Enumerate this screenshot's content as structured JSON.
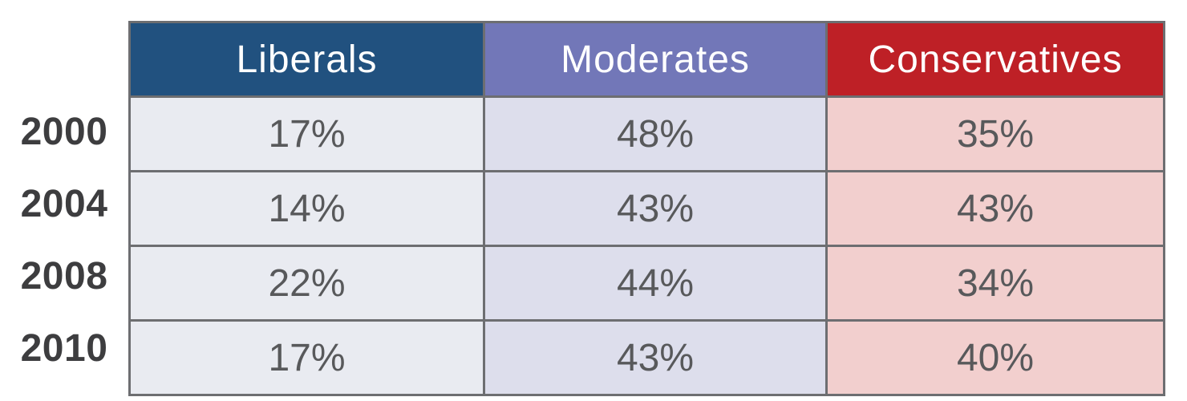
{
  "figure": {
    "table": {
      "columns": [
        {
          "label": "Liberals",
          "header_color": "#21517F",
          "cell_color": "#E9EBF1"
        },
        {
          "label": "Moderates",
          "header_color": "#7277B8",
          "cell_color": "#DDDEEC"
        },
        {
          "label": "Conservatives",
          "header_color": "#BE2026",
          "cell_color": "#F2CFCE"
        }
      ],
      "rows": [
        {
          "year": "2000",
          "values": [
            "17%",
            "48%",
            "35%"
          ]
        },
        {
          "year": "2004",
          "values": [
            "14%",
            "43%",
            "43%"
          ]
        },
        {
          "year": "2008",
          "values": [
            "22%",
            "44%",
            "34%"
          ]
        },
        {
          "year": "2010",
          "values": [
            "17%",
            "43%",
            "40%"
          ]
        }
      ]
    },
    "colors": {
      "border": "#6D6E71",
      "header_text": "#FFFFFF",
      "value_text": "#58595B",
      "year_text": "#3D3D3F",
      "background": "#FFFFFF"
    }
  },
  "chart_data": {
    "type": "table",
    "categories": [
      "2000",
      "2004",
      "2008",
      "2010"
    ],
    "series": [
      {
        "name": "Liberals",
        "values": [
          17,
          14,
          22,
          17
        ]
      },
      {
        "name": "Moderates",
        "values": [
          48,
          43,
          44,
          43
        ]
      },
      {
        "name": "Conservatives",
        "values": [
          35,
          43,
          34,
          40
        ]
      }
    ],
    "unit": "%",
    "legend_position": "top",
    "grid": true
  }
}
